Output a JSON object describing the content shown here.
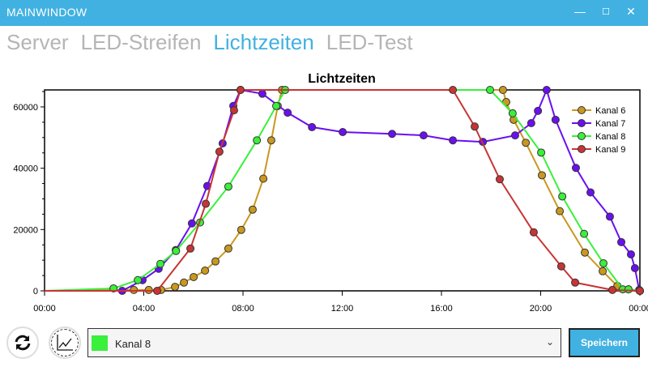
{
  "window": {
    "title": "MAINWINDOW",
    "minimize": "—",
    "maximize": "☐",
    "close": "✕"
  },
  "tabs": [
    {
      "label": "Server"
    },
    {
      "label": "LED-Streifen"
    },
    {
      "label": "Lichtzeiten",
      "active": true
    },
    {
      "label": "LED-Test"
    }
  ],
  "chart_data": {
    "type": "line",
    "title": "Lichtzeiten",
    "xlabel": "",
    "ylabel": "",
    "xlim": [
      0,
      24
    ],
    "ylim": [
      0,
      65535
    ],
    "xticks": [
      "00:00",
      "04:00",
      "08:00",
      "12:00",
      "16:00",
      "20:00",
      "00:00"
    ],
    "yticks": [
      "0",
      "20000",
      "40000",
      "60000"
    ],
    "legend": "top-right",
    "grid": false,
    "series": [
      {
        "name": "Kanal 6",
        "color": "#c9981f",
        "points": [
          [
            0,
            0
          ],
          [
            3.6,
            300
          ],
          [
            4.2,
            300
          ],
          [
            4.7,
            300
          ],
          [
            5.26,
            1300
          ],
          [
            5.62,
            2700
          ],
          [
            6.01,
            4500
          ],
          [
            6.47,
            6600
          ],
          [
            6.89,
            9600
          ],
          [
            7.41,
            13800
          ],
          [
            7.93,
            19900
          ],
          [
            8.39,
            26500
          ],
          [
            8.82,
            36600
          ],
          [
            9.14,
            49100
          ],
          [
            9.4,
            60300
          ],
          [
            9.57,
            65535
          ],
          [
            18.48,
            65535
          ],
          [
            18.61,
            61600
          ],
          [
            18.91,
            55800
          ],
          [
            19.4,
            48300
          ],
          [
            20.05,
            37700
          ],
          [
            20.77,
            26000
          ],
          [
            21.78,
            12500
          ],
          [
            22.5,
            6400
          ],
          [
            23.09,
            1600
          ],
          [
            23.54,
            500
          ],
          [
            24,
            0
          ]
        ]
      },
      {
        "name": "Kanal 7",
        "color": "#6a0ff0",
        "points": [
          [
            0,
            0
          ],
          [
            3.13,
            0
          ],
          [
            3.95,
            3500
          ],
          [
            4.6,
            7200
          ],
          [
            5.29,
            13300
          ],
          [
            5.94,
            22000
          ],
          [
            6.56,
            34200
          ],
          [
            7.18,
            48100
          ],
          [
            7.61,
            60300
          ],
          [
            7.9,
            65535
          ],
          [
            8.78,
            64300
          ],
          [
            9.8,
            58100
          ],
          [
            10.78,
            53400
          ],
          [
            12.02,
            51800
          ],
          [
            14.01,
            51200
          ],
          [
            15.28,
            50700
          ],
          [
            16.46,
            49100
          ],
          [
            17.67,
            48600
          ],
          [
            18.97,
            50700
          ],
          [
            19.62,
            54700
          ],
          [
            19.89,
            58700
          ],
          [
            20.24,
            65535
          ],
          [
            20.6,
            55800
          ],
          [
            21.42,
            40100
          ],
          [
            22.01,
            32100
          ],
          [
            22.79,
            24200
          ],
          [
            23.25,
            15900
          ],
          [
            23.64,
            11900
          ],
          [
            23.8,
            7400
          ],
          [
            23.97,
            300
          ]
        ]
      },
      {
        "name": "Kanal 8",
        "color": "#39f03a",
        "points": [
          [
            0,
            0
          ],
          [
            2.78,
            800
          ],
          [
            3.76,
            3500
          ],
          [
            4.67,
            8800
          ],
          [
            5.3,
            13000
          ],
          [
            6.27,
            22300
          ],
          [
            7.41,
            34000
          ],
          [
            8.56,
            49100
          ],
          [
            9.34,
            60300
          ],
          [
            9.7,
            65535
          ],
          [
            17.96,
            65535
          ],
          [
            18.87,
            57900
          ],
          [
            20.02,
            45100
          ],
          [
            20.87,
            30800
          ],
          [
            21.75,
            18600
          ],
          [
            22.53,
            9000
          ],
          [
            23.31,
            500
          ],
          [
            23.54,
            500
          ],
          [
            24,
            0
          ]
        ]
      },
      {
        "name": "Kanal 9",
        "color": "#c83434",
        "points": [
          [
            0,
            0
          ],
          [
            4.54,
            0
          ],
          [
            5.88,
            13800
          ],
          [
            6.5,
            28400
          ],
          [
            7.05,
            45400
          ],
          [
            7.64,
            58900
          ],
          [
            7.9,
            65535
          ],
          [
            16.46,
            65535
          ],
          [
            17.34,
            53600
          ],
          [
            18.35,
            36400
          ],
          [
            19.72,
            19100
          ],
          [
            20.83,
            8000
          ],
          [
            21.39,
            2700
          ],
          [
            22.89,
            300
          ],
          [
            24,
            0
          ]
        ]
      }
    ]
  },
  "controls": {
    "refresh_icon": "refresh-icon",
    "chart_icon": "chart-icon",
    "selected_channel": "Kanal 8",
    "selected_color": "#39f03a",
    "chevron": "⌄",
    "save_label": "Speichern"
  }
}
